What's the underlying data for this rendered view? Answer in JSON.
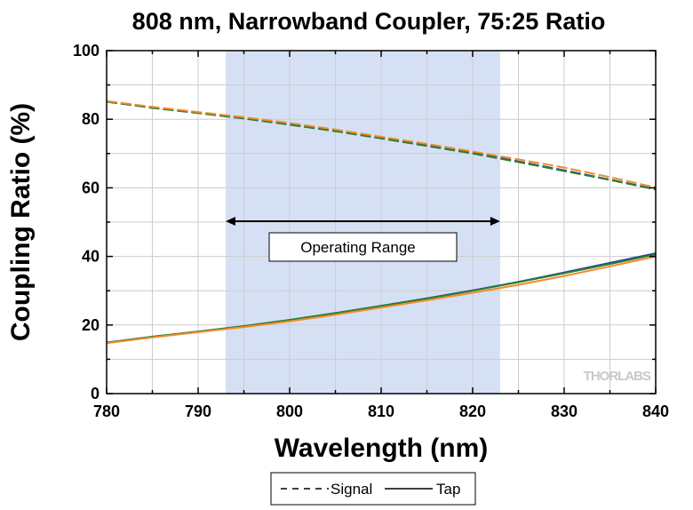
{
  "chart_data": {
    "type": "line",
    "title": "808 nm, Narrowband Coupler, 75:25 Ratio",
    "xlabel": "Wavelength (nm)",
    "ylabel": "Coupling Ratio (%)",
    "xlim": [
      780,
      840
    ],
    "ylim": [
      0,
      100
    ],
    "x_ticks": [
      "780",
      "790",
      "800",
      "810",
      "820",
      "830",
      "840"
    ],
    "y_ticks": [
      "0",
      "20",
      "40",
      "60",
      "80",
      "100"
    ],
    "grid": true,
    "legend_position": "bottom",
    "legend": [
      {
        "label": "Signal",
        "style": "dashed"
      },
      {
        "label": "Tap",
        "style": "solid"
      }
    ],
    "operating_range": {
      "x_start": 793,
      "x_end": 823,
      "label": "Operating Range",
      "color": "#d6e0f5"
    },
    "x": [
      780,
      785,
      790,
      795,
      800,
      805,
      810,
      815,
      820,
      825,
      830,
      835,
      840
    ],
    "series": [
      {
        "color": "#2d3e9e",
        "style": "dashed",
        "values": [
          85.2,
          83.4,
          81.9,
          80.4,
          78.6,
          76.7,
          74.6,
          72.4,
          70.2,
          67.7,
          65.1,
          62.4,
          59.6
        ]
      },
      {
        "color": "#2e7d32",
        "style": "dashed",
        "values": [
          85.1,
          83.3,
          81.8,
          80.2,
          78.4,
          76.5,
          74.4,
          72.2,
          70.0,
          67.5,
          64.9,
          62.3,
          59.5
        ]
      },
      {
        "color": "#f28c28",
        "style": "dashed",
        "values": [
          85.3,
          83.6,
          82.1,
          80.6,
          78.9,
          77.0,
          74.9,
          72.8,
          70.6,
          68.3,
          65.9,
          63.1,
          60.1
        ]
      },
      {
        "color": "#2d3e9e",
        "style": "solid",
        "values": [
          14.8,
          16.5,
          18.0,
          19.6,
          21.4,
          23.4,
          25.6,
          27.8,
          30.1,
          32.6,
          35.3,
          38.1,
          40.9
        ]
      },
      {
        "color": "#2e7d32",
        "style": "solid",
        "values": [
          14.9,
          16.6,
          18.1,
          19.7,
          21.5,
          23.5,
          25.6,
          27.7,
          30.0,
          32.5,
          35.1,
          37.8,
          40.6
        ]
      },
      {
        "color": "#f28c28",
        "style": "solid",
        "values": [
          14.7,
          16.4,
          17.9,
          19.4,
          21.1,
          23.0,
          25.1,
          27.2,
          29.4,
          31.7,
          34.3,
          37.1,
          40.0
        ]
      }
    ],
    "watermark": "THORLABS"
  }
}
